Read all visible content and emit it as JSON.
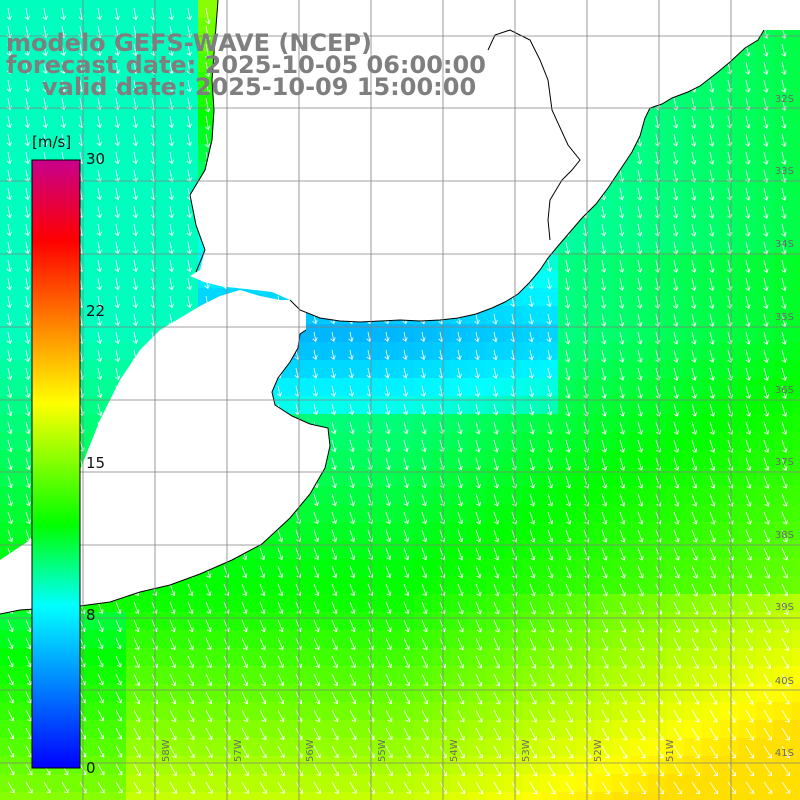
{
  "title": {
    "line1": "modelo GEFS-WAVE (NCEP)",
    "line2": "forecast date: 2025-10-05 06:00:00",
    "line3": "valid date: 2025-10-09 15:00:00"
  },
  "colorbar": {
    "unit": "[m/s]",
    "min": 0,
    "max": 30,
    "ticks": [
      "30",
      "22",
      "15",
      "8",
      "0"
    ],
    "tick_values": [
      30,
      22,
      15,
      8,
      0
    ],
    "stops": [
      {
        "value": 0,
        "color": "#0000ff"
      },
      {
        "value": 4,
        "color": "#0080ff"
      },
      {
        "value": 8,
        "color": "#00ffff"
      },
      {
        "value": 12,
        "color": "#00ff00"
      },
      {
        "value": 15,
        "color": "#80ff00"
      },
      {
        "value": 18,
        "color": "#ffff00"
      },
      {
        "value": 22,
        "color": "#ff8000"
      },
      {
        "value": 26,
        "color": "#ff0000"
      },
      {
        "value": 30,
        "color": "#c8008c"
      }
    ]
  },
  "lat_labels": [
    "32S",
    "33S",
    "34S",
    "35S",
    "36S",
    "37S",
    "38S",
    "39S",
    "40S",
    "41S"
  ],
  "lon_labels": [
    "58W",
    "57W",
    "56W",
    "55W",
    "54W",
    "53W",
    "52W",
    "51W"
  ],
  "colors": {
    "land": "#ffffff",
    "coastline": "#000000",
    "grid": "#808080",
    "arrows": "#ffffff",
    "title_text": "#7f7f7f"
  }
}
